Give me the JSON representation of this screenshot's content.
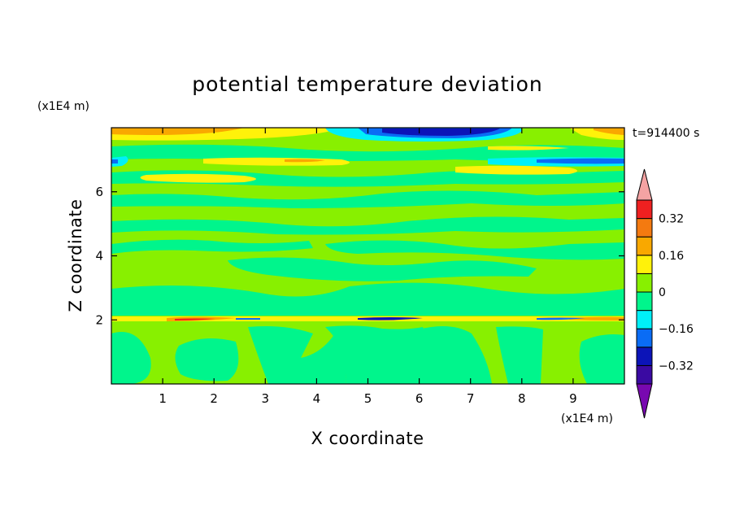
{
  "chart_data": {
    "type": "heatmap",
    "title": "potential temperature deviation",
    "xlabel": "X coordinate",
    "ylabel": "Z coordinate",
    "x_unit": "(x1E4 m)",
    "y_unit": "(x1E4 m)",
    "time_label": "t=914400 s",
    "xlim": [
      0,
      10
    ],
    "ylim": [
      0,
      8
    ],
    "x_ticks": [
      "1",
      "2",
      "3",
      "4",
      "5",
      "6",
      "7",
      "8",
      "9"
    ],
    "y_ticks": [
      "2",
      "4",
      "6"
    ],
    "colorbar": {
      "levels": [
        -0.4,
        -0.32,
        -0.24,
        -0.16,
        -0.08,
        0,
        0.08,
        0.16,
        0.24,
        0.32,
        0.4
      ],
      "labels": [
        "0.32",
        "0.16",
        "0",
        "−0.16",
        "−0.32"
      ],
      "colors": {
        "over": "#f4a3a3",
        "b9": "#ef2020",
        "b8": "#f47a10",
        "b7": "#f9a800",
        "b6": "#fff20a",
        "b5": "#88f000",
        "b4": "#00f58c",
        "b3": "#00f0f8",
        "b2": "#0a6cf5",
        "b1": "#0c14b8",
        "b0": "#3a0aa2",
        "under": "#7808b0"
      }
    }
  }
}
